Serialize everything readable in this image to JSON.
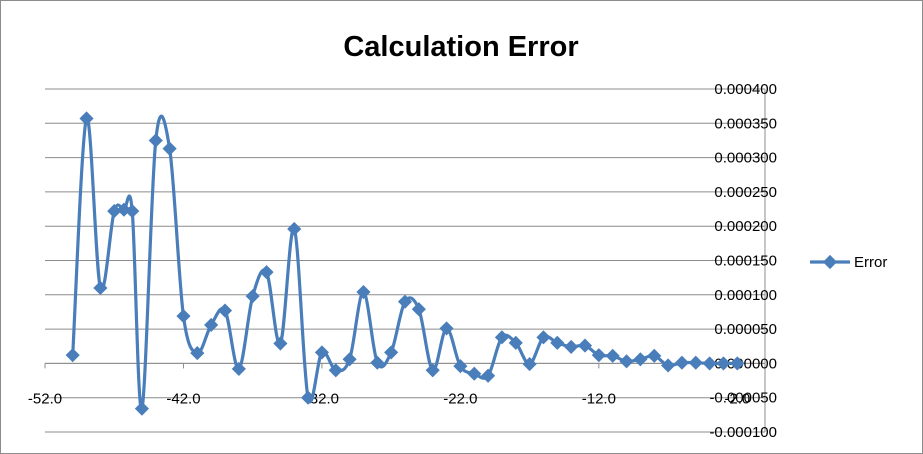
{
  "chart_data": {
    "type": "line",
    "title": "Calculation Error",
    "xlabel": "",
    "ylabel": "",
    "xlim": [
      -52.0,
      0.0
    ],
    "ylim": [
      -0.0001,
      0.0004
    ],
    "x_ticks": [
      "-52.0",
      "-42.0",
      "-32.0",
      "-22.0",
      "-12.0",
      "-2.0"
    ],
    "y_ticks": [
      "0.000400",
      "0.000350",
      "0.000300",
      "0.000250",
      "0.000200",
      "0.000150",
      "0.000100",
      "0.000050",
      "0.000000",
      "-0.000050",
      "-0.000100"
    ],
    "grid": true,
    "legend_position": "right",
    "line_style": "smooth",
    "colors": {
      "series": "#4a7ebb",
      "grid": "#8c8c8c"
    },
    "series": [
      {
        "name": "Error",
        "x": [
          -50,
          -49,
          -48,
          -47,
          -46.3,
          -45.7,
          -45,
          -44,
          -43,
          -42,
          -41,
          -40,
          -39,
          -38,
          -37,
          -36,
          -35,
          -34,
          -33,
          -32,
          -31,
          -30,
          -29,
          -28,
          -27,
          -26,
          -25,
          -24,
          -23,
          -22,
          -21,
          -20,
          -19,
          -18,
          -17,
          -16,
          -15,
          -14,
          -13,
          -12,
          -11,
          -10,
          -9,
          -8,
          -7,
          -6,
          -5,
          -4,
          -3,
          -2
        ],
        "y": [
          1.2e-05,
          0.000357,
          0.00011,
          0.000222,
          0.000224,
          0.000222,
          -6.6e-05,
          0.000325,
          0.000313,
          6.9e-05,
          1.5e-05,
          5.6e-05,
          7.7e-05,
          -8e-06,
          9.8e-05,
          0.000133,
          2.9e-05,
          0.000196,
          -5e-05,
          1.6e-05,
          -1e-05,
          6e-06,
          0.000104,
          1e-06,
          1.6e-05,
          9e-05,
          7.9e-05,
          -1e-05,
          5.1e-05,
          -4e-06,
          -1.5e-05,
          -1.8e-05,
          3.8e-05,
          3e-05,
          -1e-06,
          3.8e-05,
          3e-05,
          2.4e-05,
          2.6e-05,
          1.2e-05,
          1.1e-05,
          3e-06,
          6e-06,
          1.1e-05,
          -3e-06,
          1e-06,
          1e-06,
          0,
          0,
          0
        ]
      }
    ]
  }
}
